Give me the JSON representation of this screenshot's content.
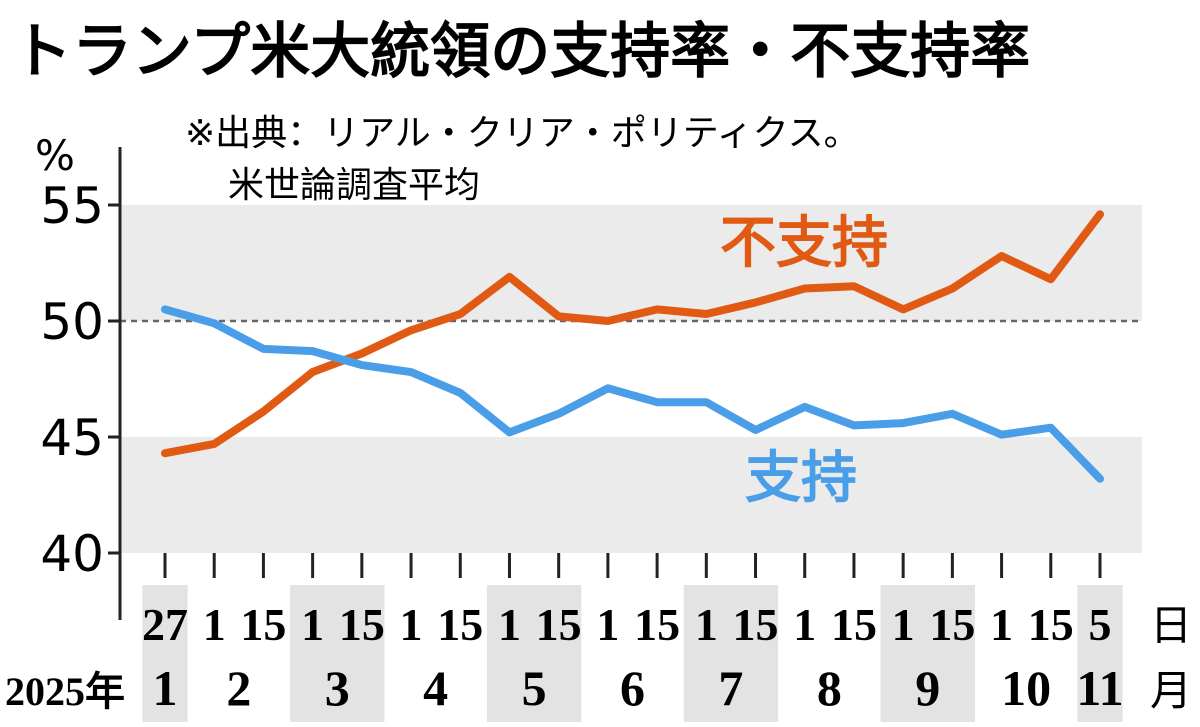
{
  "chart_data": {
    "type": "line",
    "title": "トランプ米大統領の支持率・不支持率",
    "source": [
      "※出典：リアル・クリア・ポリティクス。",
      "米世論調査平均"
    ],
    "y_unit": "%",
    "year_label": "2025年",
    "day_unit": "日",
    "month_unit": "月",
    "categories": [
      "27",
      "1",
      "15",
      "1",
      "15",
      "1",
      "15",
      "1",
      "15",
      "1",
      "15",
      "1",
      "15",
      "1",
      "15",
      "1",
      "15",
      "1",
      "15",
      "5"
    ],
    "month_labels": [
      "1",
      "2",
      "3",
      "4",
      "5",
      "6",
      "7",
      "8",
      "9",
      "10",
      "11"
    ],
    "series": [
      {
        "name": "不支持",
        "color": "#e05a14",
        "values": [
          44.3,
          44.7,
          46.1,
          47.8,
          48.6,
          49.6,
          50.3,
          51.9,
          50.2,
          50.0,
          50.5,
          50.3,
          50.8,
          51.4,
          51.5,
          50.5,
          51.4,
          52.8,
          51.8,
          54.6
        ]
      },
      {
        "name": "支持",
        "color": "#4a9ee8",
        "values": [
          50.5,
          49.9,
          48.8,
          48.7,
          48.1,
          47.8,
          46.9,
          45.2,
          46.0,
          47.1,
          46.5,
          46.5,
          45.3,
          46.3,
          45.5,
          45.6,
          46.0,
          45.1,
          45.4,
          43.2
        ]
      }
    ],
    "ylim": [
      40,
      57.5
    ],
    "yticks": [
      40,
      45,
      50,
      55
    ],
    "reference_line": 50
  }
}
